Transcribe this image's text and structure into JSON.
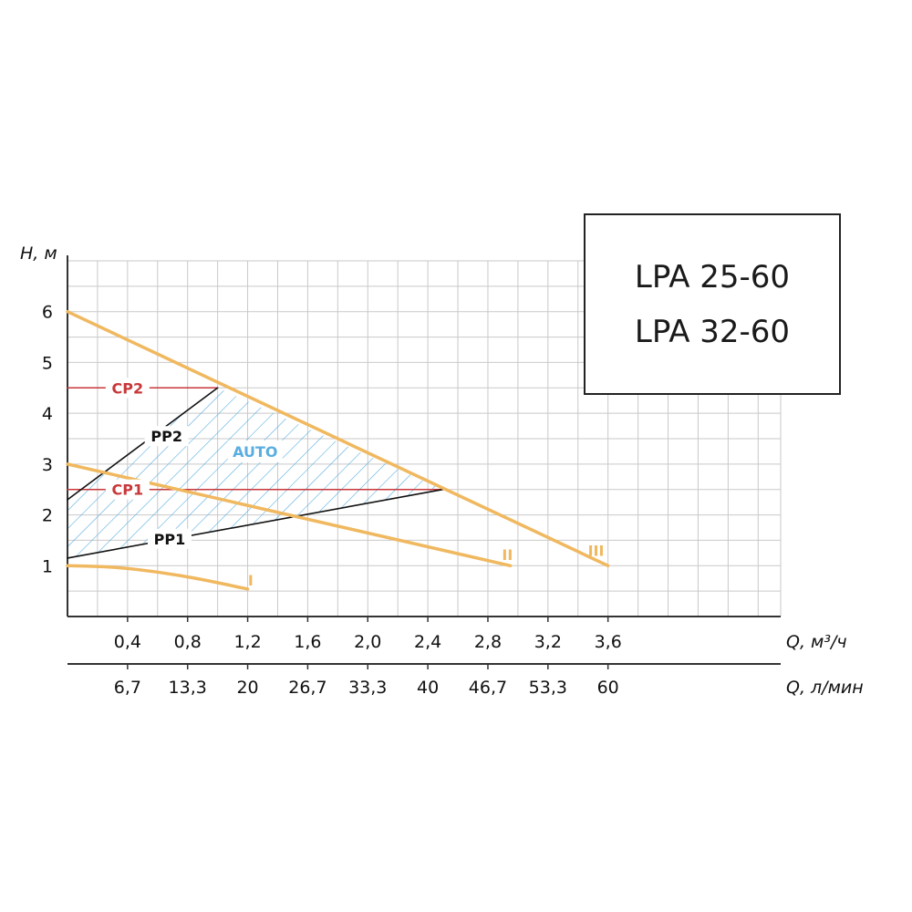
{
  "models": [
    "LPA 25-60",
    "LPA 32-60"
  ],
  "colors": {
    "curve": "#f0b85f",
    "cp": "#c8373a",
    "pp": "#111111",
    "auto": "#5aaee0",
    "grid": "#c9c9c9"
  },
  "chart_data": {
    "type": "line",
    "xlabel": "Q, м³/ч",
    "xlabel_secondary": "Q, л/мин",
    "ylabel": "H, м",
    "xlim": [
      0,
      4.75
    ],
    "ylim": [
      0,
      7
    ],
    "grid": true,
    "x_ticks": [
      {
        "value": 0.4,
        "label": "0,4"
      },
      {
        "value": 0.8,
        "label": "0,8"
      },
      {
        "value": 1.2,
        "label": "1,2"
      },
      {
        "value": 1.6,
        "label": "1,6"
      },
      {
        "value": 2.0,
        "label": "2,0"
      },
      {
        "value": 2.4,
        "label": "2,4"
      },
      {
        "value": 2.8,
        "label": "2,8"
      },
      {
        "value": 3.2,
        "label": "3,2"
      },
      {
        "value": 3.6,
        "label": "3,6"
      }
    ],
    "x_ticks_secondary": [
      {
        "value": 0.4,
        "label": "6,7"
      },
      {
        "value": 0.8,
        "label": "13,3"
      },
      {
        "value": 1.2,
        "label": "20"
      },
      {
        "value": 1.6,
        "label": "26,7"
      },
      {
        "value": 2.0,
        "label": "33,3"
      },
      {
        "value": 2.4,
        "label": "40"
      },
      {
        "value": 2.8,
        "label": "46,7"
      },
      {
        "value": 3.2,
        "label": "53,3"
      },
      {
        "value": 3.6,
        "label": "60"
      }
    ],
    "y_ticks": [
      1,
      2,
      3,
      4,
      5,
      6
    ],
    "series": [
      {
        "name": "I",
        "kind": "speed",
        "points": [
          [
            0,
            1.0
          ],
          [
            0.3,
            0.98
          ],
          [
            0.6,
            0.88
          ],
          [
            0.9,
            0.73
          ],
          [
            1.2,
            0.54
          ]
        ],
        "label_at": [
          1.22,
          0.72
        ]
      },
      {
        "name": "II",
        "kind": "speed",
        "points": [
          [
            0,
            3.0
          ],
          [
            2.95,
            1.0
          ]
        ],
        "label_at": [
          2.93,
          1.22
        ]
      },
      {
        "name": "III",
        "kind": "speed",
        "points": [
          [
            0,
            6.0
          ],
          [
            3.6,
            1.0
          ]
        ],
        "label_at": [
          3.52,
          1.3
        ]
      },
      {
        "name": "CP2",
        "kind": "cp",
        "points": [
          [
            0,
            4.5
          ],
          [
            1.0,
            4.5
          ]
        ],
        "label_at": [
          0.4,
          4.5
        ]
      },
      {
        "name": "CP1",
        "kind": "cp",
        "points": [
          [
            0,
            2.5
          ],
          [
            2.5,
            2.5
          ]
        ],
        "label_at": [
          0.4,
          2.5
        ]
      },
      {
        "name": "PP2",
        "kind": "pp",
        "points": [
          [
            0,
            2.3
          ],
          [
            1.0,
            4.5
          ]
        ],
        "label_at": [
          0.66,
          3.55
        ]
      },
      {
        "name": "PP1",
        "kind": "pp",
        "points": [
          [
            0,
            1.15
          ],
          [
            2.5,
            2.5
          ]
        ],
        "label_at": [
          0.68,
          1.53
        ]
      }
    ],
    "region": {
      "name": "AUTO",
      "polygon": [
        [
          0,
          1.15
        ],
        [
          0,
          2.3
        ],
        [
          1.0,
          4.5
        ],
        [
          2.5,
          2.5
        ]
      ],
      "label_at": [
        1.25,
        3.25
      ]
    }
  }
}
